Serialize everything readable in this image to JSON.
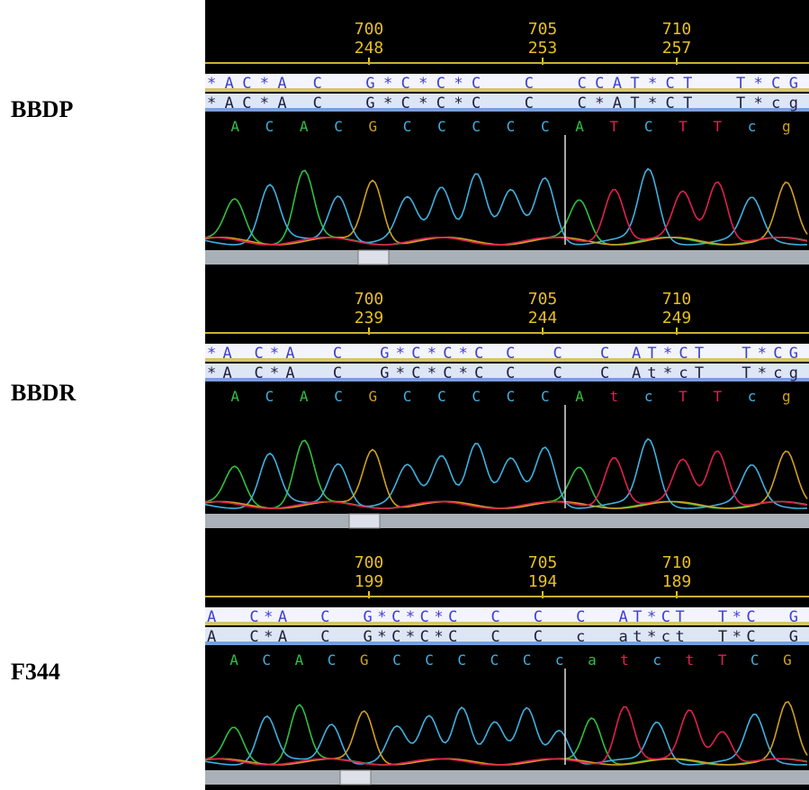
{
  "panels": [
    {
      "label": "BBDP",
      "ruler": [
        {
          "top": "700",
          "bottom": "248"
        },
        {
          "top": "705",
          "bottom": "253"
        },
        {
          "top": "710",
          "bottom": "257"
        }
      ],
      "sequence_rows": [
        "*AC*A C  G*C*C*C  C  CCAT*CT  T*CG",
        "*AC*A C  G*C*C*C  C  C*AT*CT  T*cg"
      ],
      "base_calls": [
        "A",
        "C",
        "A",
        "C",
        "G",
        "C",
        "C",
        "C",
        "C",
        "C",
        "A",
        "T",
        "C",
        "T",
        "T",
        "c",
        "g"
      ]
    },
    {
      "label": "BBDR",
      "ruler": [
        {
          "top": "700",
          "bottom": "239"
        },
        {
          "top": "705",
          "bottom": "244"
        },
        {
          "top": "710",
          "bottom": "249"
        }
      ],
      "sequence_rows": [
        "*A C*A  C  G*C*C*C C  C  C AT*CT  T*CG",
        "*A C*A  C  G*C*C*C C  C  C At*cT  T*cg"
      ],
      "base_calls": [
        "A",
        "C",
        "A",
        "C",
        "G",
        "C",
        "C",
        "C",
        "C",
        "C",
        "A",
        "t",
        "c",
        "T",
        "T",
        "c",
        "g"
      ]
    },
    {
      "label": "F344",
      "ruler": [
        {
          "top": "700",
          "bottom": "199"
        },
        {
          "top": "705",
          "bottom": "194"
        },
        {
          "top": "710",
          "bottom": "189"
        }
      ],
      "sequence_rows": [
        "A  C*A  C  G*C*C*C  C  C  C  AT*CT  T*C  G",
        "A  C*A  C  G*C*C*C  C  C  c  at*ct  T*C  G"
      ],
      "base_calls": [
        "A",
        "C",
        "A",
        "C",
        "G",
        "C",
        "C",
        "C",
        "C",
        "C",
        "c",
        "a",
        "t",
        "c",
        "t",
        "T",
        "C",
        "G"
      ]
    }
  ]
}
